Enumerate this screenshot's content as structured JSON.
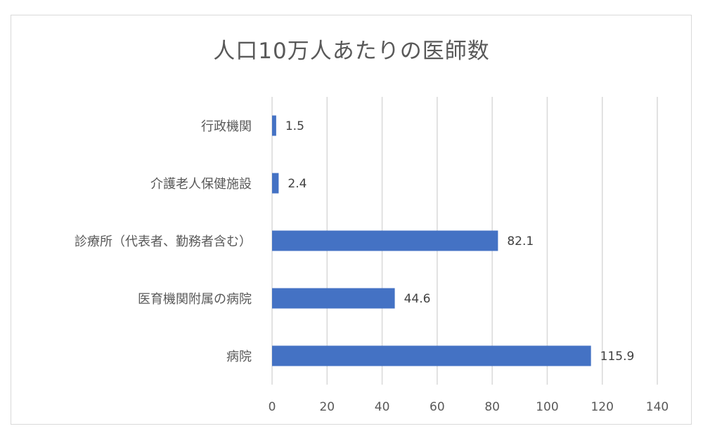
{
  "chart_data": {
    "type": "bar",
    "orientation": "horizontal",
    "title": "人口10万人あたりの医師数",
    "categories": [
      "行政機関",
      "介護老人保健施設",
      "診療所（代表者、勤務者含む）",
      "医育機関附属の病院",
      "病院"
    ],
    "values": [
      1.5,
      2.4,
      82.1,
      44.6,
      115.9
    ],
    "value_labels": [
      "1.5",
      "2.4",
      "82.1",
      "44.6",
      "115.9"
    ],
    "xlim": [
      0,
      140
    ],
    "x_ticks": [
      0,
      20,
      40,
      60,
      80,
      100,
      120,
      140
    ],
    "xlabel": "",
    "ylabel": "",
    "grid": "vertical",
    "legend": "none",
    "bar_color": "#4472c4",
    "grid_color": "#d9d9d9"
  }
}
